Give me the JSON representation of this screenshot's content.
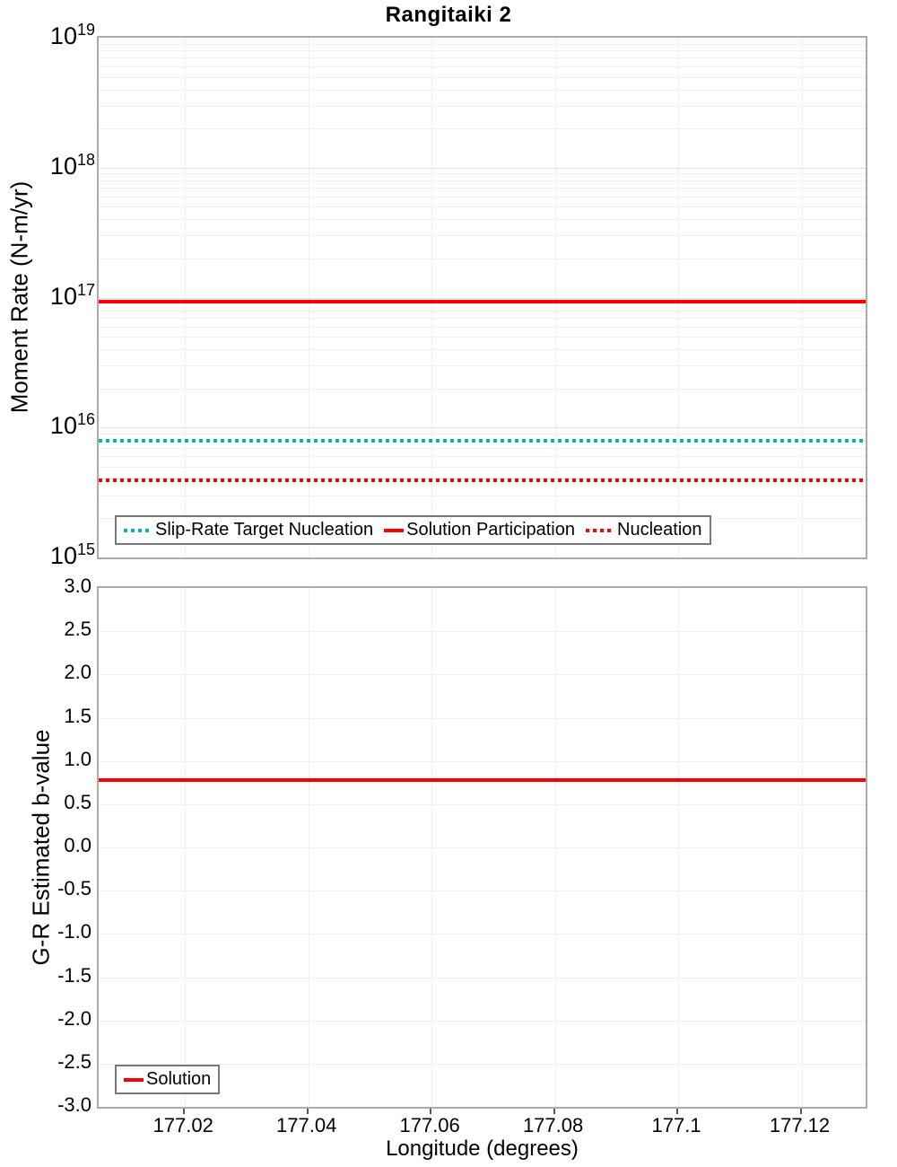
{
  "figure": {
    "title": "Rangitaiki 2"
  },
  "colors": {
    "red": "#fa0000",
    "teal": "#00b4ba",
    "grid_minor": "#eeeeee",
    "grid_major": "#e2e2e2",
    "axis_border": "#acacac",
    "legend_border": "#787878",
    "text": "#000000"
  },
  "chart_data": [
    {
      "type": "line",
      "panel": "moment-rate",
      "title": "Rangitaiki 2",
      "ylabel": "Moment Rate (N-m/yr)",
      "yscale": "log",
      "ylim": [
        1000000000000000.0,
        1e+19
      ],
      "ytick_base": "10",
      "ytick_exponents": [
        19,
        18,
        17,
        16,
        15
      ],
      "xlim": [
        177.006,
        177.1304
      ],
      "grid": true,
      "legend_position": "bottom-left",
      "series": [
        {
          "name": "Slip-Rate Target Nucleation",
          "style": "dotted",
          "color": "#00b4ba",
          "value": 7900000000000000.0
        },
        {
          "name": "Solution Participation",
          "style": "solid",
          "color": "#fa0000",
          "value": 9.3e+16
        },
        {
          "name": "Nucleation",
          "style": "dotted",
          "color": "#fa0000",
          "value": 3900000000000000.0
        }
      ]
    },
    {
      "type": "line",
      "panel": "b-value",
      "ylabel": "G-R Estimated b-value",
      "xlabel": "Longitude (degrees)",
      "ylim": [
        -3.0,
        3.0
      ],
      "ytick_values": [
        3.0,
        2.5,
        2.0,
        1.5,
        1.0,
        0.5,
        0.0,
        -0.5,
        -1.0,
        -1.5,
        -2.0,
        -2.5,
        -3.0
      ],
      "ytick_labels": [
        "3.0",
        "2.5",
        "2.0",
        "1.5",
        "1.0",
        "0.5",
        "0.0",
        "-0.5",
        "-1.0",
        "-1.5",
        "-2.0",
        "-2.5",
        "-3.0"
      ],
      "xlim": [
        177.006,
        177.1304
      ],
      "xtick_values": [
        177.02,
        177.04,
        177.06,
        177.08,
        177.1,
        177.12
      ],
      "xtick_labels": [
        "177.02",
        "177.04",
        "177.06",
        "177.08",
        "177.1",
        "177.12"
      ],
      "grid": true,
      "legend_position": "bottom-left",
      "series": [
        {
          "name": "Solution",
          "style": "solid",
          "color": "#fa0000",
          "value": 0.78
        }
      ]
    }
  ]
}
